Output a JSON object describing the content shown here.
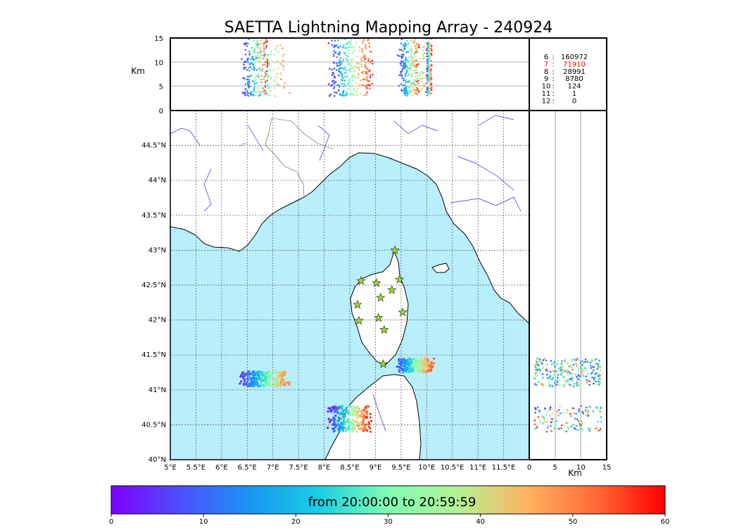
{
  "title": "SAETTA Lightning Mapping Array - 240924",
  "chart_data": {
    "type": "scatter",
    "map": {
      "lon_range": [
        5.0,
        12.0
      ],
      "lat_range": [
        40.0,
        45.0
      ],
      "x_ticks": [
        "5°E",
        "5.5°E",
        "6°E",
        "6.5°E",
        "7°E",
        "7.5°E",
        "8°E",
        "8.5°E",
        "9°E",
        "9.5°E",
        "10°E",
        "10.5°E",
        "11°E",
        "11.5°E"
      ],
      "y_ticks": [
        "40°N",
        "40.5°N",
        "41°N",
        "41.5°N",
        "42°N",
        "42.5°N",
        "43°N",
        "43.5°N",
        "44°N",
        "44.5°N"
      ],
      "grid": true,
      "stations_lonlat": [
        [
          9.38,
          43.0
        ],
        [
          8.72,
          42.56
        ],
        [
          9.02,
          42.53
        ],
        [
          9.47,
          42.58
        ],
        [
          9.1,
          42.32
        ],
        [
          9.32,
          42.43
        ],
        [
          8.65,
          42.22
        ],
        [
          8.68,
          41.99
        ],
        [
          9.06,
          42.03
        ],
        [
          9.53,
          42.11
        ],
        [
          9.17,
          41.86
        ],
        [
          9.15,
          41.37
        ]
      ],
      "storm_cells": [
        {
          "lon": [
            6.35,
            7.35
          ],
          "lat": [
            41.05,
            41.27
          ],
          "times": [
            5,
            50
          ]
        },
        {
          "lon": [
            8.05,
            8.95
          ],
          "lat": [
            40.4,
            40.77
          ],
          "times": [
            2,
            58
          ]
        },
        {
          "lon": [
            9.4,
            10.18
          ],
          "lat": [
            41.25,
            41.45
          ],
          "times": [
            8,
            55
          ]
        }
      ]
    },
    "altitude_panel": {
      "y_label": "Km",
      "y_ticks": [
        "0",
        "5",
        "10",
        "15"
      ],
      "y_range": [
        0,
        15
      ]
    },
    "lat_alt_panel": {
      "x_label": "Km",
      "x_ticks": [
        "0",
        "5",
        "10",
        "15"
      ],
      "x_range": [
        0,
        15
      ]
    },
    "colorbar": {
      "range": [
        0,
        60
      ],
      "ticks": [
        "0",
        "10",
        "20",
        "30",
        "40",
        "50",
        "60"
      ],
      "label": "from 20:00:00 to 20:59:59"
    },
    "counts": [
      {
        "n": "6",
        "value": "160972",
        "color": "#000000"
      },
      {
        "n": "7",
        "value": "71910",
        "color": "#ff0000"
      },
      {
        "n": "8",
        "value": "28991",
        "color": "#000000"
      },
      {
        "n": "9",
        "value": "8780",
        "color": "#000000"
      },
      {
        "n": "10",
        "value": "124",
        "color": "#000000"
      },
      {
        "n": "11",
        "value": "1",
        "color": "#000000"
      },
      {
        "n": "12",
        "value": "0",
        "color": "#000000"
      }
    ],
    "colors": {
      "sea": "#b9eefc",
      "land": "#ffffff",
      "star": "#99e01a",
      "river": "#2a2ae8",
      "border": "#555555"
    }
  }
}
